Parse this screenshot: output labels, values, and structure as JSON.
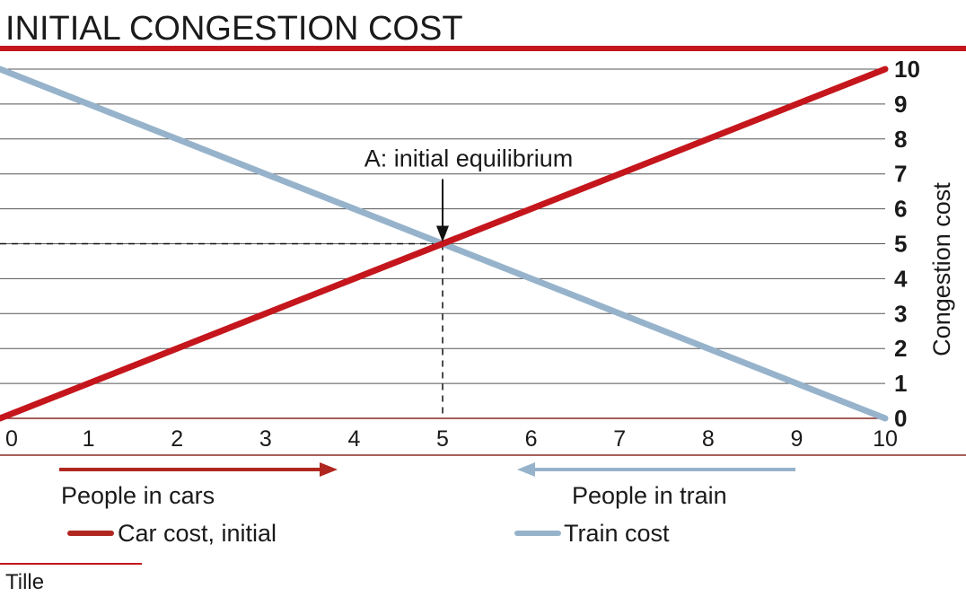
{
  "title": "INITIAL CONGESTION COST",
  "colors": {
    "accent": "#c4161c",
    "car": "#c4161c",
    "train": "#96b3cb",
    "grid": "#555555",
    "axis_rule": "#8a2a22",
    "cars_arrow": "#b0271f",
    "train_arrow": "#96b3cb"
  },
  "chart_data": {
    "type": "line",
    "ylabel": "Congestion cost",
    "xlim": [
      0,
      10
    ],
    "ylim": [
      0,
      10
    ],
    "x_ticks": [
      "0",
      "1",
      "2",
      "3",
      "4",
      "5",
      "6",
      "7",
      "8",
      "9",
      "10"
    ],
    "y_ticks": [
      "0",
      "1",
      "2",
      "3",
      "4",
      "5",
      "6",
      "7",
      "8",
      "9",
      "10"
    ],
    "grid": true,
    "y_axis_side": "right",
    "series": [
      {
        "name": "Car cost, initial",
        "x": [
          0,
          10
        ],
        "y": [
          0,
          10
        ]
      },
      {
        "name": "Train cost",
        "x": [
          0,
          10
        ],
        "y": [
          10,
          0
        ]
      }
    ],
    "annotation": {
      "label": "A: initial equilibrium",
      "x": 5,
      "y": 5
    },
    "direction_labels": {
      "cars": "People in cars",
      "train": "People in train"
    },
    "legend": [
      {
        "label": "Car cost, initial",
        "icon": "red-line-swatch"
      },
      {
        "label": "Train cost",
        "icon": "blue-line-swatch"
      }
    ]
  },
  "credit": "Tille"
}
